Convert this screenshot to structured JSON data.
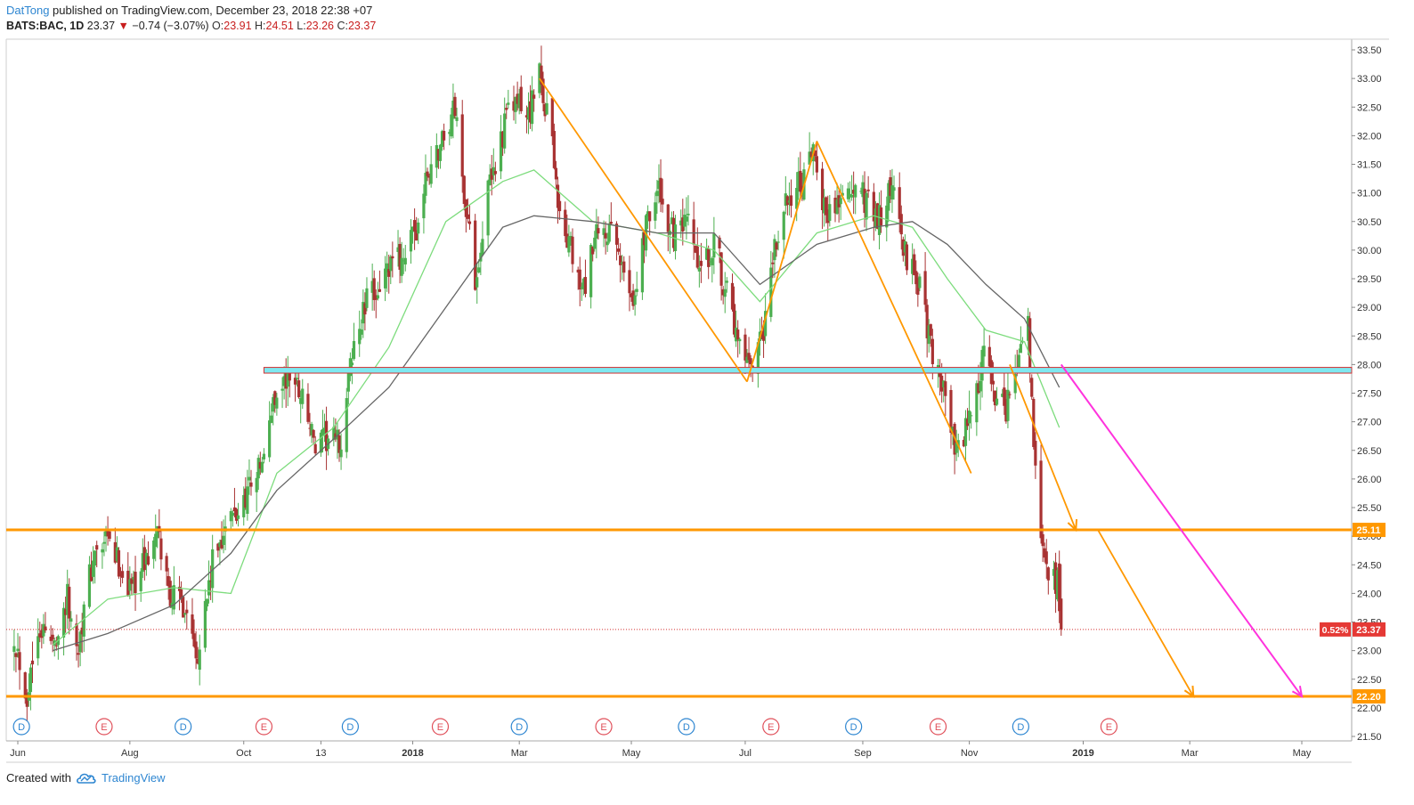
{
  "header": {
    "author": "DatTong",
    "published_text": "published on TradingView.com, December 23, 2018 22:38 +07",
    "symbol": "BATS:BAC, 1D",
    "last": "23.37",
    "change": "−0.74 (−3.07%)",
    "o_label": "O:",
    "o": "23.91",
    "h_label": "H:",
    "h": "24.51",
    "l_label": "L:",
    "l": "23.26",
    "c_label": "C:",
    "c": "23.37"
  },
  "footer": {
    "created_with": "Created with",
    "brand": "TradingView"
  },
  "colors": {
    "up": "#4caf50",
    "down": "#a83232",
    "ma_fast": "#7ddc7d",
    "ma_slow": "#666666",
    "orange": "#ff9800",
    "magenta": "#ff33dd",
    "cyan": "#7fe8f0",
    "zone_border": "#d32f2f",
    "dividend": "#2e86d1",
    "earnings": "#e0505a"
  },
  "chart_data": {
    "type": "candlestick",
    "symbol": "BATS:BAC",
    "interval": "1D",
    "ylim": [
      21.4,
      33.7
    ],
    "y_ticks": [
      "21.50",
      "22.00",
      "22.50",
      "23.00",
      "23.50",
      "24.00",
      "24.50",
      "25.00",
      "25.50",
      "26.00",
      "26.50",
      "27.00",
      "27.50",
      "28.00",
      "28.50",
      "29.00",
      "29.50",
      "30.00",
      "30.50",
      "31.00",
      "31.50",
      "32.00",
      "32.50",
      "33.00",
      "33.50"
    ],
    "x_ticks": [
      {
        "label": "Jun",
        "date": "2017-06-01"
      },
      {
        "label": "Aug",
        "date": "2017-08-01"
      },
      {
        "label": "Oct",
        "date": "2017-10-02"
      },
      {
        "label": "13",
        "date": "2017-11-13"
      },
      {
        "label": "2018",
        "date": "2018-01-02"
      },
      {
        "label": "Mar",
        "date": "2018-03-01"
      },
      {
        "label": "May",
        "date": "2018-05-01"
      },
      {
        "label": "Jul",
        "date": "2018-07-02"
      },
      {
        "label": "Sep",
        "date": "2018-09-04"
      },
      {
        "label": "Nov",
        "date": "2018-11-01"
      },
      {
        "label": "2019",
        "date": "2019-01-02"
      },
      {
        "label": "Mar",
        "date": "2019-03-01"
      },
      {
        "label": "May",
        "date": "2019-05-01"
      }
    ],
    "price_path": [
      [
        "2017-05-30",
        23.3
      ],
      [
        "2017-06-06",
        22.2
      ],
      [
        "2017-06-12",
        23.5
      ],
      [
        "2017-06-20",
        23.1
      ],
      [
        "2017-06-28",
        23.9
      ],
      [
        "2017-07-03",
        23.0
      ],
      [
        "2017-07-12",
        24.6
      ],
      [
        "2017-07-20",
        24.9
      ],
      [
        "2017-08-01",
        24.1
      ],
      [
        "2017-08-10",
        24.6
      ],
      [
        "2017-08-16",
        25.0
      ],
      [
        "2017-08-23",
        24.0
      ],
      [
        "2017-08-31",
        23.8
      ],
      [
        "2017-09-07",
        23.0
      ],
      [
        "2017-09-15",
        24.5
      ],
      [
        "2017-09-22",
        25.2
      ],
      [
        "2017-09-29",
        25.4
      ],
      [
        "2017-10-06",
        26.0
      ],
      [
        "2017-10-13",
        26.3
      ],
      [
        "2017-10-18",
        27.4
      ],
      [
        "2017-10-27",
        27.8
      ],
      [
        "2017-11-03",
        27.5
      ],
      [
        "2017-11-10",
        26.5
      ],
      [
        "2017-11-17",
        26.7
      ],
      [
        "2017-11-24",
        26.6
      ],
      [
        "2017-11-30",
        28.2
      ],
      [
        "2017-12-08",
        29.1
      ],
      [
        "2017-12-15",
        29.4
      ],
      [
        "2017-12-22",
        29.7
      ],
      [
        "2018-01-03",
        30.2
      ],
      [
        "2018-01-10",
        31.3
      ],
      [
        "2018-01-19",
        32.0
      ],
      [
        "2018-01-25",
        32.5
      ],
      [
        "2018-01-30",
        31.0
      ],
      [
        "2018-02-05",
        29.5
      ],
      [
        "2018-02-12",
        31.0
      ],
      [
        "2018-02-21",
        32.2
      ],
      [
        "2018-02-27",
        32.6
      ],
      [
        "2018-03-05",
        32.3
      ],
      [
        "2018-03-12",
        33.0
      ],
      [
        "2018-03-19",
        32.0
      ],
      [
        "2018-03-23",
        30.5
      ],
      [
        "2018-03-29",
        30.0
      ],
      [
        "2018-04-04",
        29.2
      ],
      [
        "2018-04-12",
        30.2
      ],
      [
        "2018-04-19",
        30.3
      ],
      [
        "2018-04-26",
        29.7
      ],
      [
        "2018-05-03",
        29.2
      ],
      [
        "2018-05-10",
        30.7
      ],
      [
        "2018-05-16",
        31.0
      ],
      [
        "2018-05-24",
        30.2
      ],
      [
        "2018-06-01",
        30.4
      ],
      [
        "2018-06-08",
        29.5
      ],
      [
        "2018-06-15",
        30.2
      ],
      [
        "2018-06-22",
        29.2
      ],
      [
        "2018-06-29",
        28.2
      ],
      [
        "2018-07-05",
        27.8
      ],
      [
        "2018-07-12",
        28.5
      ],
      [
        "2018-07-18",
        30.0
      ],
      [
        "2018-07-26",
        31.0
      ],
      [
        "2018-08-03",
        31.2
      ],
      [
        "2018-08-09",
        31.7
      ],
      [
        "2018-08-15",
        30.6
      ],
      [
        "2018-08-22",
        30.9
      ],
      [
        "2018-08-29",
        31.0
      ],
      [
        "2018-09-07",
        30.9
      ],
      [
        "2018-09-14",
        30.5
      ],
      [
        "2018-09-20",
        31.2
      ],
      [
        "2018-09-26",
        30.0
      ],
      [
        "2018-10-03",
        29.6
      ],
      [
        "2018-10-10",
        28.5
      ],
      [
        "2018-10-17",
        27.7
      ],
      [
        "2018-10-24",
        26.5
      ],
      [
        "2018-10-30",
        26.8
      ],
      [
        "2018-11-05",
        27.5
      ],
      [
        "2018-11-09",
        28.3
      ],
      [
        "2018-11-15",
        27.3
      ],
      [
        "2018-11-21",
        27.2
      ],
      [
        "2018-11-28",
        28.2
      ],
      [
        "2018-12-03",
        28.7
      ],
      [
        "2018-12-06",
        26.5
      ],
      [
        "2018-12-10",
        25.0
      ],
      [
        "2018-12-14",
        24.3
      ],
      [
        "2018-12-19",
        24.2
      ],
      [
        "2018-12-21",
        23.37
      ]
    ],
    "ma_fast_label": "",
    "ma_slow_label": "",
    "ma_fast": [
      [
        "2017-06-20",
        23.1
      ],
      [
        "2017-07-20",
        23.9
      ],
      [
        "2017-08-25",
        24.1
      ],
      [
        "2017-09-25",
        24.0
      ],
      [
        "2017-10-20",
        26.1
      ],
      [
        "2017-11-20",
        26.9
      ],
      [
        "2017-12-20",
        28.3
      ],
      [
        "2018-01-20",
        30.5
      ],
      [
        "2018-02-20",
        31.2
      ],
      [
        "2018-03-09",
        31.4
      ],
      [
        "2018-04-10",
        30.5
      ],
      [
        "2018-05-15",
        30.3
      ],
      [
        "2018-06-15",
        30.0
      ],
      [
        "2018-07-10",
        29.1
      ],
      [
        "2018-08-10",
        30.3
      ],
      [
        "2018-09-10",
        30.6
      ],
      [
        "2018-10-01",
        30.4
      ],
      [
        "2018-10-20",
        29.5
      ],
      [
        "2018-11-10",
        28.6
      ],
      [
        "2018-12-01",
        28.4
      ],
      [
        "2018-12-20",
        26.9
      ]
    ],
    "ma_slow": [
      [
        "2017-06-20",
        23.0
      ],
      [
        "2017-07-20",
        23.3
      ],
      [
        "2017-08-25",
        23.8
      ],
      [
        "2017-09-25",
        24.7
      ],
      [
        "2017-10-20",
        25.8
      ],
      [
        "2017-11-20",
        26.7
      ],
      [
        "2017-12-20",
        27.6
      ],
      [
        "2018-01-20",
        29.0
      ],
      [
        "2018-02-20",
        30.4
      ],
      [
        "2018-03-09",
        30.6
      ],
      [
        "2018-04-10",
        30.5
      ],
      [
        "2018-05-15",
        30.3
      ],
      [
        "2018-06-15",
        30.3
      ],
      [
        "2018-07-10",
        29.4
      ],
      [
        "2018-08-10",
        30.1
      ],
      [
        "2018-09-10",
        30.4
      ],
      [
        "2018-10-01",
        30.5
      ],
      [
        "2018-10-20",
        30.1
      ],
      [
        "2018-11-10",
        29.4
      ],
      [
        "2018-12-01",
        28.8
      ],
      [
        "2018-12-20",
        27.6
      ]
    ],
    "horizontal_levels": [
      {
        "price": 25.11,
        "label": "25.11",
        "color": "#ff9800"
      },
      {
        "price": 22.2,
        "label": "22.20",
        "color": "#ff9800"
      }
    ],
    "resistance_zone": {
      "from": "2017-10-13",
      "top": 27.95,
      "bottom": 27.85
    },
    "last_price": {
      "price": 23.37,
      "label": "23.37",
      "pct": "0.52%"
    },
    "trend_lines": [
      {
        "color": "orange",
        "points": [
          [
            "2018-03-12",
            33.0
          ],
          [
            "2018-07-03",
            27.7
          ]
        ]
      },
      {
        "color": "orange",
        "points": [
          [
            "2018-07-03",
            27.7
          ],
          [
            "2018-08-10",
            31.9
          ]
        ]
      },
      {
        "color": "orange",
        "points": [
          [
            "2018-08-10",
            31.9
          ],
          [
            "2018-11-02",
            26.1
          ]
        ]
      },
      {
        "color": "orange",
        "arrow": true,
        "points": [
          [
            "2018-11-23",
            28.0
          ],
          [
            "2018-12-29",
            25.11
          ]
        ]
      },
      {
        "color": "orange",
        "arrow": true,
        "points": [
          [
            "2019-01-10",
            25.11
          ],
          [
            "2019-03-03",
            22.2
          ]
        ]
      },
      {
        "color": "magenta",
        "arrow": true,
        "points": [
          [
            "2018-12-21",
            28.0
          ],
          [
            "2019-05-01",
            22.2
          ]
        ]
      }
    ],
    "events": [
      {
        "label": "D",
        "date": "2017-06-03",
        "type": "dividend"
      },
      {
        "label": "E",
        "date": "2017-07-18",
        "type": "earnings"
      },
      {
        "label": "D",
        "date": "2017-08-30",
        "type": "dividend"
      },
      {
        "label": "E",
        "date": "2017-10-13",
        "type": "earnings"
      },
      {
        "label": "D",
        "date": "2017-11-29",
        "type": "dividend"
      },
      {
        "label": "E",
        "date": "2018-01-17",
        "type": "earnings"
      },
      {
        "label": "D",
        "date": "2018-03-01",
        "type": "dividend"
      },
      {
        "label": "E",
        "date": "2018-04-16",
        "type": "earnings"
      },
      {
        "label": "D",
        "date": "2018-05-31",
        "type": "dividend"
      },
      {
        "label": "E",
        "date": "2018-07-16",
        "type": "earnings"
      },
      {
        "label": "D",
        "date": "2018-08-30",
        "type": "dividend"
      },
      {
        "label": "E",
        "date": "2018-10-15",
        "type": "earnings"
      },
      {
        "label": "D",
        "date": "2018-11-29",
        "type": "dividend"
      },
      {
        "label": "E",
        "date": "2019-01-16",
        "type": "earnings"
      }
    ]
  }
}
